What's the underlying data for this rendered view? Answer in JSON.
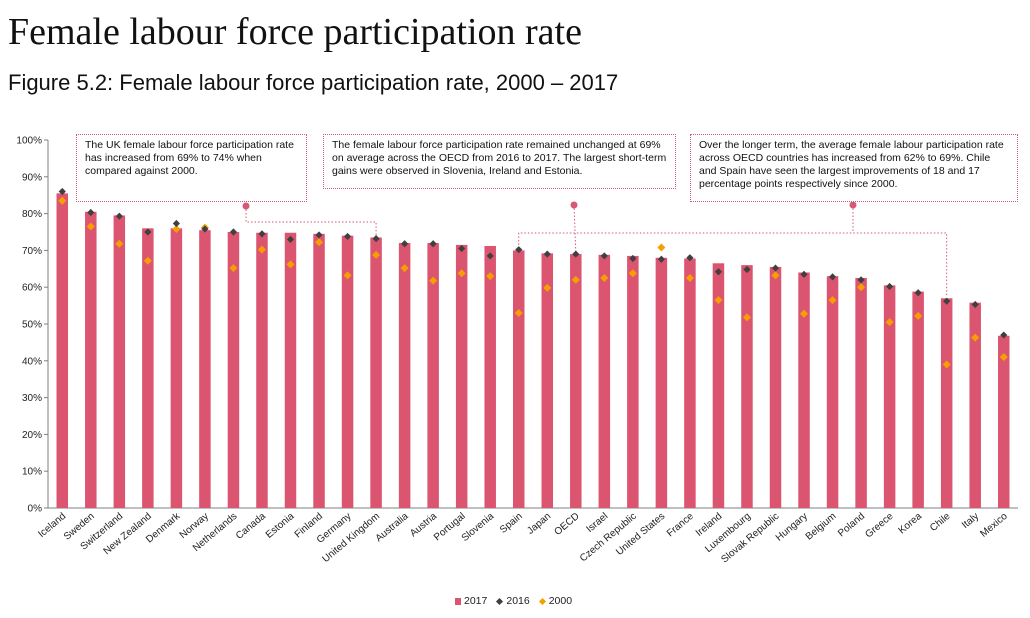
{
  "page_title": "Female labour force participation rate",
  "figure_title": "Figure 5.2: Female labour force participation rate, 2000 – 2017",
  "annotations": [
    {
      "text": "The UK female labour force participation rate has increased from 69% to 74% when compared against 2000."
    },
    {
      "text": "The female labour force participation rate remained unchanged at 69% on average across the OECD from 2016 to 2017. The largest short-term gains were observed in Slovenia, Ireland and Estonia."
    },
    {
      "text": "Over the longer term, the average female labour participation rate across OECD countries has increased from 62% to 69%. Chile and Spain have seen the largest improvements of 18 and 17 percentage points respectively since 2000."
    }
  ],
  "colors": {
    "bar_2017": "#dc5570",
    "marker_2016": "#404040",
    "marker_2000": "#f5a000",
    "annotation": "#d65a75"
  },
  "chart_data": {
    "type": "bar",
    "categories": [
      "Iceland",
      "Sweden",
      "Switzerland",
      "New Zealand",
      "Denmark",
      "Norway",
      "Netherlands",
      "Canada",
      "Estonia",
      "Finland",
      "Germany",
      "United Kingdom",
      "Australia",
      "Austria",
      "Portugal",
      "Slovenia",
      "Spain",
      "Japan",
      "OECD",
      "Israel",
      "Czech Republic",
      "United States",
      "France",
      "Ireland",
      "Luxembourg",
      "Slovak Republic",
      "Hungary",
      "Belgium",
      "Poland",
      "Greece",
      "Korea",
      "Chile",
      "Italy",
      "Mexico"
    ],
    "series": [
      {
        "name": "2017",
        "kind": "bar",
        "values": [
          85.5,
          80.5,
          79.5,
          76,
          76,
          75.5,
          75,
          74.8,
          74.8,
          74.5,
          74,
          73.5,
          72,
          72,
          71.5,
          71.2,
          70,
          69.2,
          69,
          68.8,
          68.5,
          68,
          67.8,
          66.5,
          66,
          65.5,
          64,
          63,
          62.5,
          60.5,
          58.8,
          57,
          55.8,
          46.8
        ]
      },
      {
        "name": "2016",
        "kind": "marker",
        "values": [
          86,
          80.3,
          79.3,
          75,
          77.3,
          75.8,
          75,
          74.5,
          73,
          74.2,
          73.8,
          73.2,
          71.8,
          71.8,
          70.5,
          68.5,
          70.2,
          69,
          69,
          68.5,
          67.8,
          67.6,
          68,
          64.2,
          64.8,
          65.2,
          63.5,
          62.8,
          62,
          60.2,
          58.5,
          56.2,
          55.3,
          47
        ]
      },
      {
        "name": "2000",
        "kind": "marker",
        "values": [
          83.5,
          76.5,
          71.8,
          67.2,
          75.8,
          76.2,
          65.2,
          70.2,
          66.2,
          72.2,
          63.2,
          68.8,
          65.2,
          61.8,
          63.8,
          63,
          53,
          59.8,
          62,
          62.5,
          63.8,
          70.8,
          62.5,
          56.5,
          51.8,
          63.2,
          52.8,
          56.5,
          60,
          50.5,
          52.2,
          39,
          46.3,
          41
        ]
      }
    ],
    "y_tick_labels": [
      "0%",
      "10%",
      "20%",
      "30%",
      "40%",
      "50%",
      "60%",
      "70%",
      "80%",
      "90%",
      "100%"
    ],
    "ylim": [
      0,
      100
    ],
    "legend": "bottom"
  }
}
